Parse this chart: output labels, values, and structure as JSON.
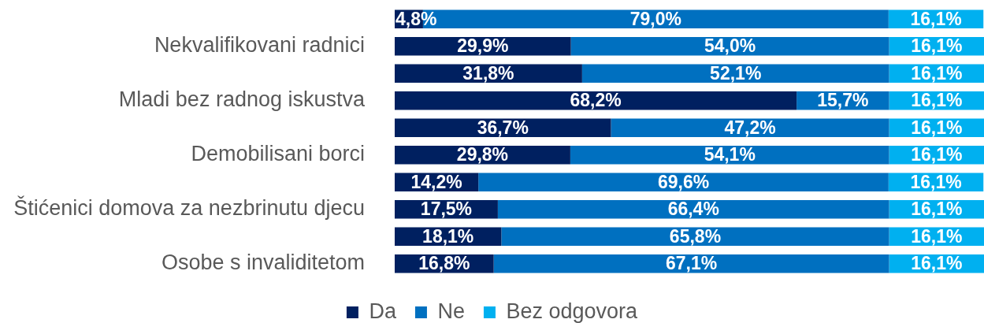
{
  "chart_data": {
    "type": "bar",
    "orientation": "horizontal",
    "stacked": true,
    "categories": [
      null,
      "Nekvalifikovani radnici",
      null,
      "Mladi bez radnog iskustva",
      null,
      "Demobilisani borci",
      null,
      "Štićenici domova za nezbrinutu djecu",
      null,
      "Osobe s invaliditetom"
    ],
    "series": [
      {
        "name": "Da",
        "color": "#002060",
        "values": [
          4.8,
          29.9,
          31.8,
          68.2,
          36.7,
          29.8,
          14.2,
          17.5,
          18.1,
          16.8
        ],
        "value_labels": [
          "4,8%",
          "29,9%",
          "31,8%",
          "68,2%",
          "36,7%",
          "29,8%",
          "14,2%",
          "17,5%",
          "18,1%",
          "16,8%"
        ]
      },
      {
        "name": "Ne",
        "color": "#0070c0",
        "values": [
          79.0,
          54.0,
          52.1,
          15.7,
          47.2,
          54.1,
          69.6,
          66.4,
          65.8,
          67.1
        ],
        "value_labels": [
          "79,0%",
          "54,0%",
          "52,1%",
          "15,7%",
          "47,2%",
          "54,1%",
          "69,6%",
          "66,4%",
          "65,8%",
          "67,1%"
        ]
      },
      {
        "name": "Bez odgovora",
        "color": "#00b0f0",
        "values": [
          16.1,
          16.1,
          16.1,
          16.1,
          16.1,
          16.1,
          16.1,
          16.1,
          16.1,
          16.1
        ],
        "value_labels": [
          "16,1%",
          "16,1%",
          "16,1%",
          "16,1%",
          "16,1%",
          "16,1%",
          "16,1%",
          "16,1%",
          "16,1%",
          "16,1%"
        ]
      }
    ],
    "xlim": [
      0,
      100
    ],
    "tick_labels": "y",
    "grid": false,
    "legend": "bottom"
  }
}
